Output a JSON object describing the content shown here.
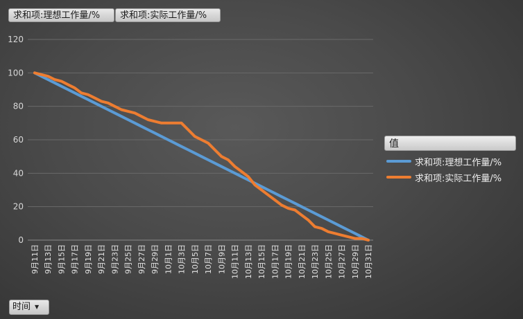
{
  "field_buttons": [
    "求和项:理想工作量/%",
    "求和项:实际工作量/%"
  ],
  "legend": {
    "title": "值",
    "items": [
      {
        "label": "求和项:理想工作量/%",
        "color": "#5b9bd5"
      },
      {
        "label": "求和项:实际工作量/%",
        "color": "#ed7d31"
      }
    ]
  },
  "filter": {
    "label": "时间",
    "icon": "dropdown-arrow-icon"
  },
  "chart_data": {
    "type": "line",
    "ylim": [
      0,
      120
    ],
    "yticks": [
      0,
      20,
      40,
      60,
      80,
      100,
      120
    ],
    "grid": true,
    "legend_position": "right",
    "x": [
      "9月11日",
      "9月12日",
      "9月13日",
      "9月14日",
      "9月15日",
      "9月16日",
      "9月17日",
      "9月18日",
      "9月19日",
      "9月20日",
      "9月21日",
      "9月22日",
      "9月23日",
      "9月24日",
      "9月25日",
      "9月26日",
      "9月27日",
      "9月28日",
      "9月29日",
      "9月30日",
      "10月1日",
      "10月2日",
      "10月3日",
      "10月4日",
      "10月5日",
      "10月6日",
      "10月7日",
      "10月8日",
      "10月9日",
      "10月10日",
      "10月11日",
      "10月12日",
      "10月13日",
      "10月14日",
      "10月15日",
      "10月16日",
      "10月17日",
      "10月18日",
      "10月19日",
      "10月20日",
      "10月21日",
      "10月22日",
      "10月23日",
      "10月24日",
      "10月25日",
      "10月26日",
      "10月27日",
      "10月28日",
      "10月29日",
      "10月30日",
      "10月31日"
    ],
    "xtick_labels": [
      "9月11日",
      "9月13日",
      "9月15日",
      "9月17日",
      "9月19日",
      "9月21日",
      "9月23日",
      "9月25日",
      "9月27日",
      "9月29日",
      "10月1日",
      "10月3日",
      "10月5日",
      "10月7日",
      "10月9日",
      "10月11日",
      "10月13日",
      "10月15日",
      "10月17日",
      "10月19日",
      "10月21日",
      "10月23日",
      "10月25日",
      "10月27日",
      "10月29日",
      "10月31日"
    ],
    "series": [
      {
        "name": "求和项:理想工作量/%",
        "color": "#5b9bd5",
        "values": [
          100,
          98,
          96,
          94,
          92,
          90,
          88,
          86,
          84,
          82,
          80,
          78,
          76,
          74,
          72,
          70,
          68,
          66,
          64,
          62,
          60,
          58,
          56,
          54,
          52,
          50,
          48,
          46,
          44,
          42,
          40,
          38,
          36,
          34,
          32,
          30,
          28,
          26,
          24,
          22,
          20,
          18,
          16,
          14,
          12,
          10,
          8,
          6,
          4,
          2,
          0
        ]
      },
      {
        "name": "求和项:实际工作量/%",
        "color": "#ed7d31",
        "values": [
          100,
          99,
          98,
          96,
          95,
          93,
          91,
          88,
          87,
          85,
          83,
          82,
          80,
          78,
          77,
          76,
          74,
          72,
          71,
          70,
          70,
          70,
          70,
          66,
          62,
          60,
          58,
          54,
          50,
          48,
          44,
          41,
          38,
          33,
          30,
          27,
          24,
          21,
          19,
          18,
          15,
          12,
          8,
          7,
          5,
          4,
          3,
          2,
          1,
          1,
          0
        ]
      }
    ]
  }
}
